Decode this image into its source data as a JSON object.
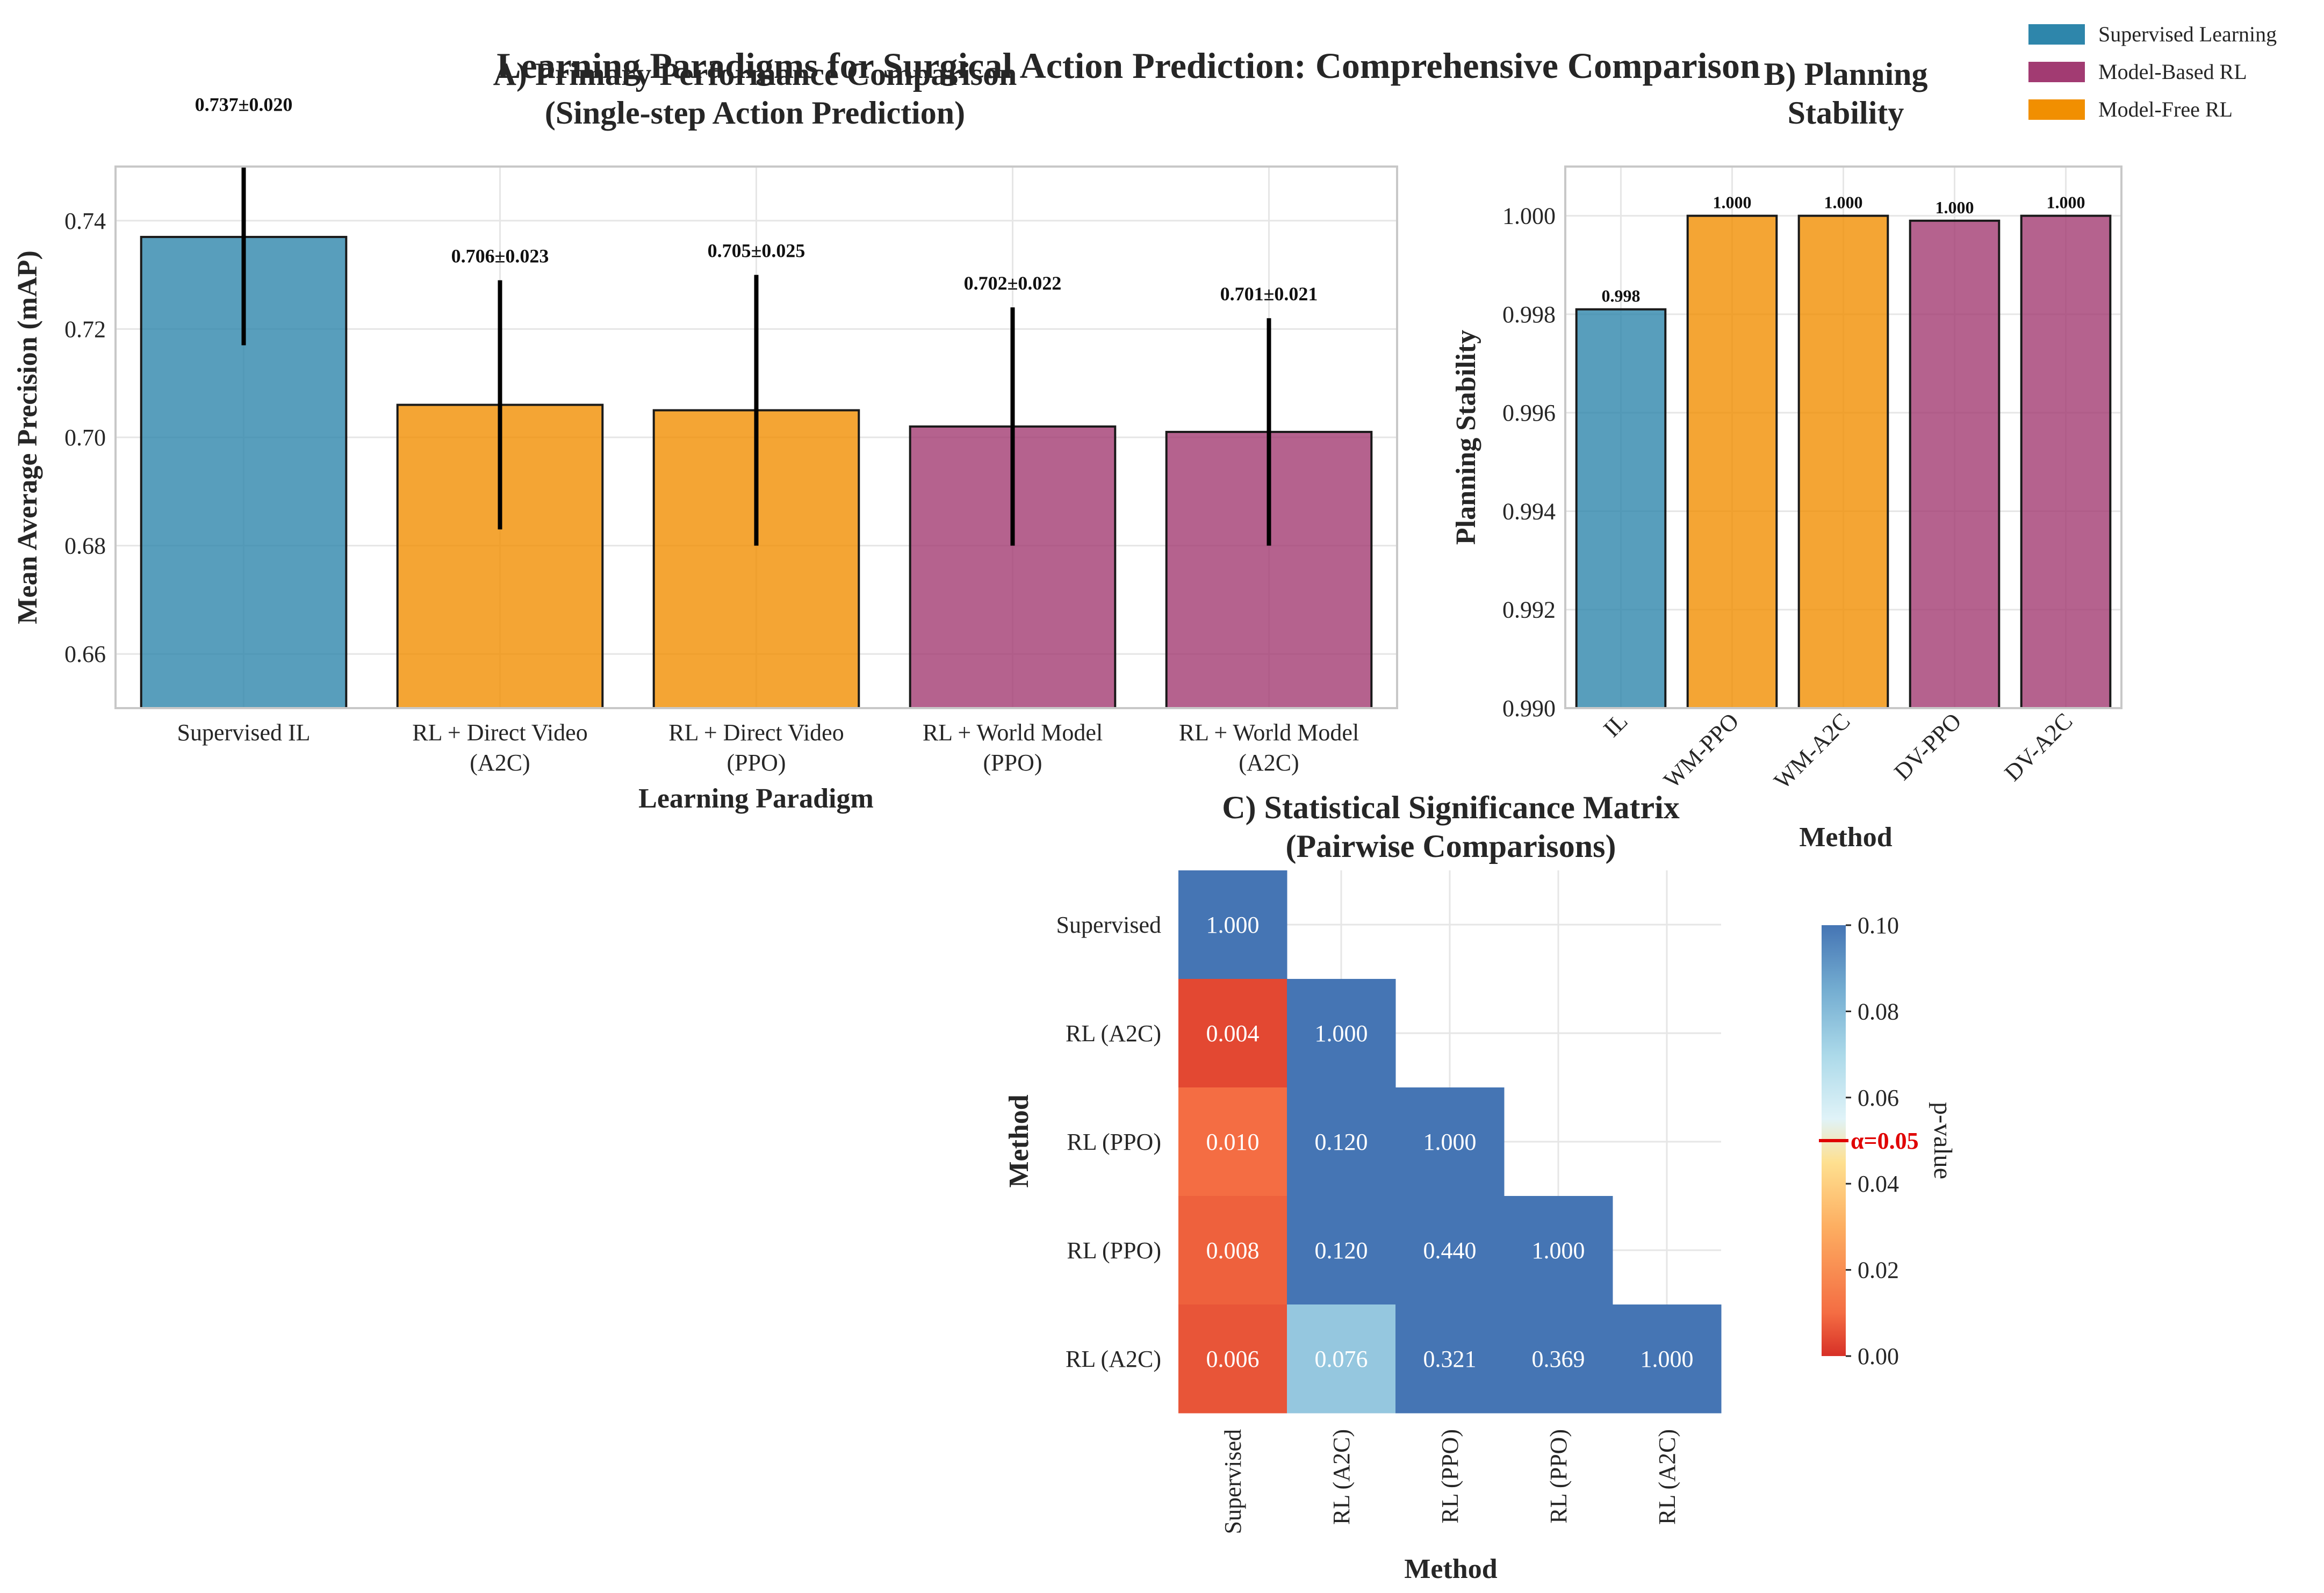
{
  "figure": {
    "suptitle": "Learning Paradigms for Surgical Action Prediction: Comprehensive Comparison"
  },
  "colors": {
    "supervised": "#2e86ab",
    "model_based": "#a23b72",
    "model_free": "#f18f01",
    "grid": "#e6e6e6",
    "frame": "#c8c8c8",
    "alpha_line": "#e00000"
  },
  "legend": {
    "placement": "upper-right",
    "items": [
      {
        "label": "Supervised Learning",
        "color_key": "supervised"
      },
      {
        "label": "Model-Based RL",
        "color_key": "model_based"
      },
      {
        "label": "Model-Free RL",
        "color_key": "model_free"
      }
    ]
  },
  "chart_data": [
    {
      "id": "A",
      "type": "bar",
      "title": "A) Primary Performance Comparison\n(Single-step Action Prediction)",
      "xlabel": "Learning Paradigm",
      "ylabel": "Mean Average Precision (mAP)",
      "ylim": [
        0.65,
        0.75
      ],
      "yticks": [
        0.66,
        0.68,
        0.7,
        0.72,
        0.74
      ],
      "ytick_labels": [
        "0.66",
        "0.68",
        "0.70",
        "0.72",
        "0.74"
      ],
      "grid": true,
      "categories": [
        "Supervised IL",
        "RL + Direct Video\n(A2C)",
        "RL + Direct Video\n(PPO)",
        "RL + World Model\n(PPO)",
        "RL + World Model\n(A2C)"
      ],
      "values": [
        0.737,
        0.706,
        0.705,
        0.702,
        0.701
      ],
      "errors": [
        0.02,
        0.023,
        0.025,
        0.022,
        0.021
      ],
      "bar_color_keys": [
        "supervised",
        "model_free",
        "model_free",
        "model_based",
        "model_based"
      ],
      "data_labels": [
        "0.737±0.020",
        "0.706±0.023",
        "0.705±0.025",
        "0.702±0.022",
        "0.701±0.021"
      ]
    },
    {
      "id": "B",
      "type": "bar",
      "title": "B) Planning\nStability",
      "xlabel": "Method",
      "ylabel": "Planning Stability",
      "ylim": [
        0.99,
        1.001
      ],
      "yticks": [
        0.99,
        0.992,
        0.994,
        0.996,
        0.998,
        1.0
      ],
      "ytick_labels": [
        "0.990",
        "0.992",
        "0.994",
        "0.996",
        "0.998",
        "1.000"
      ],
      "grid": true,
      "categories": [
        "IL",
        "WM-PPO",
        "WM-A2C",
        "DV-PPO",
        "DV-A2C"
      ],
      "values": [
        0.9981,
        1.0,
        1.0,
        0.9999,
        1.0
      ],
      "bar_color_keys": [
        "supervised",
        "model_free",
        "model_free",
        "model_based",
        "model_based"
      ],
      "data_labels": [
        "0.998",
        "1.000",
        "1.000",
        "1.000",
        "1.000"
      ]
    },
    {
      "id": "C",
      "type": "heatmap",
      "title": "C) Statistical Significance Matrix\n(Pairwise Comparisons)",
      "xlabel": "Method",
      "ylabel": "Method",
      "row_labels": [
        "Supervised",
        "RL (A2C)",
        "RL (PPO)",
        "RL (PPO)",
        "RL (A2C)"
      ],
      "col_labels": [
        "Supervised",
        "RL (A2C)",
        "RL (PPO)",
        "RL (PPO)",
        "RL (A2C)"
      ],
      "values": [
        [
          1.0,
          null,
          null,
          null,
          null
        ],
        [
          0.004,
          1.0,
          null,
          null,
          null
        ],
        [
          0.01,
          0.12,
          1.0,
          null,
          null
        ],
        [
          0.008,
          0.12,
          0.44,
          1.0,
          null
        ],
        [
          0.006,
          0.076,
          0.321,
          0.369,
          1.0
        ]
      ],
      "vmin": 0.0,
      "vmax": 0.1,
      "colormap": "RdYlBu",
      "colorbar_label": "p-value",
      "colorbar_ticks": [
        0.0,
        0.02,
        0.04,
        0.06,
        0.08,
        0.1
      ],
      "colorbar_tick_labels": [
        "0.00",
        "0.02",
        "0.04",
        "0.06",
        "0.08",
        "0.10"
      ],
      "alpha_value": 0.05,
      "alpha_label": "α=0.05",
      "grid": true
    }
  ]
}
